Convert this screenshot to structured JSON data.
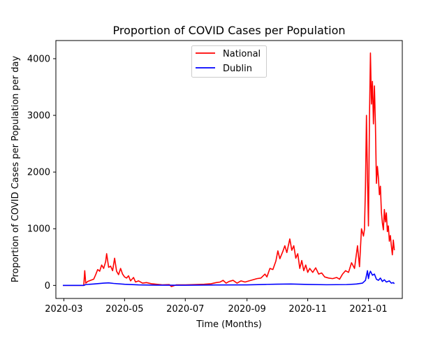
{
  "chart_data": {
    "type": "line",
    "title": "Proportion of COVID Cases per Population",
    "xlabel": "Time (Months)",
    "ylabel": "Proportion of COVID Cases per Population per day",
    "x_range": [
      "2020-02-22",
      "2021-02-04"
    ],
    "ylim": [
      -230,
      4320
    ],
    "x_ticks": [
      "2020-03-01",
      "2020-05-01",
      "2020-07-01",
      "2020-09-01",
      "2020-11-01",
      "2021-01-01"
    ],
    "x_tick_labels": [
      "2020-03",
      "2020-05",
      "2020-07",
      "2020-09",
      "2020-11",
      "2021-01"
    ],
    "y_ticks": [
      0,
      1000,
      2000,
      3000,
      4000
    ],
    "y_tick_labels": [
      "0",
      "1000",
      "2000",
      "3000",
      "4000"
    ],
    "grid": false,
    "legend_position": "top-center",
    "series": [
      {
        "name": "National",
        "color": "#ff0000",
        "points": [
          [
            "2020-02-29",
            0
          ],
          [
            "2020-03-10",
            0
          ],
          [
            "2020-03-21",
            0
          ],
          [
            "2020-03-22",
            260
          ],
          [
            "2020-03-23",
            40
          ],
          [
            "2020-03-25",
            70
          ],
          [
            "2020-03-28",
            90
          ],
          [
            "2020-03-31",
            110
          ],
          [
            "2020-04-02",
            190
          ],
          [
            "2020-04-04",
            280
          ],
          [
            "2020-04-06",
            250
          ],
          [
            "2020-04-08",
            360
          ],
          [
            "2020-04-10",
            300
          ],
          [
            "2020-04-12",
            420
          ],
          [
            "2020-04-13",
            560
          ],
          [
            "2020-04-15",
            320
          ],
          [
            "2020-04-17",
            340
          ],
          [
            "2020-04-19",
            260
          ],
          [
            "2020-04-21",
            480
          ],
          [
            "2020-04-23",
            250
          ],
          [
            "2020-04-25",
            190
          ],
          [
            "2020-04-27",
            300
          ],
          [
            "2020-04-29",
            200
          ],
          [
            "2020-05-01",
            150
          ],
          [
            "2020-05-03",
            130
          ],
          [
            "2020-05-05",
            170
          ],
          [
            "2020-05-07",
            80
          ],
          [
            "2020-05-10",
            140
          ],
          [
            "2020-05-12",
            60
          ],
          [
            "2020-05-15",
            80
          ],
          [
            "2020-05-19",
            40
          ],
          [
            "2020-05-23",
            50
          ],
          [
            "2020-05-28",
            30
          ],
          [
            "2020-06-02",
            20
          ],
          [
            "2020-06-08",
            10
          ],
          [
            "2020-06-15",
            15
          ],
          [
            "2020-06-17",
            -20
          ],
          [
            "2020-06-22",
            10
          ],
          [
            "2020-07-01",
            10
          ],
          [
            "2020-07-10",
            15
          ],
          [
            "2020-07-20",
            20
          ],
          [
            "2020-07-27",
            30
          ],
          [
            "2020-08-01",
            50
          ],
          [
            "2020-08-05",
            60
          ],
          [
            "2020-08-08",
            90
          ],
          [
            "2020-08-11",
            40
          ],
          [
            "2020-08-14",
            70
          ],
          [
            "2020-08-18",
            90
          ],
          [
            "2020-08-22",
            40
          ],
          [
            "2020-08-26",
            80
          ],
          [
            "2020-08-30",
            60
          ],
          [
            "2020-09-03",
            80
          ],
          [
            "2020-09-07",
            100
          ],
          [
            "2020-09-11",
            120
          ],
          [
            "2020-09-15",
            130
          ],
          [
            "2020-09-19",
            200
          ],
          [
            "2020-09-21",
            150
          ],
          [
            "2020-09-24",
            300
          ],
          [
            "2020-09-27",
            280
          ],
          [
            "2020-09-30",
            430
          ],
          [
            "2020-10-02",
            610
          ],
          [
            "2020-10-04",
            470
          ],
          [
            "2020-10-07",
            600
          ],
          [
            "2020-10-09",
            700
          ],
          [
            "2020-10-11",
            580
          ],
          [
            "2020-10-14",
            820
          ],
          [
            "2020-10-16",
            620
          ],
          [
            "2020-10-18",
            700
          ],
          [
            "2020-10-20",
            480
          ],
          [
            "2020-10-22",
            560
          ],
          [
            "2020-10-24",
            300
          ],
          [
            "2020-10-26",
            440
          ],
          [
            "2020-10-28",
            260
          ],
          [
            "2020-10-30",
            360
          ],
          [
            "2020-11-01",
            230
          ],
          [
            "2020-11-03",
            300
          ],
          [
            "2020-11-06",
            230
          ],
          [
            "2020-11-09",
            310
          ],
          [
            "2020-11-12",
            200
          ],
          [
            "2020-11-15",
            220
          ],
          [
            "2020-11-18",
            150
          ],
          [
            "2020-11-22",
            130
          ],
          [
            "2020-11-26",
            120
          ],
          [
            "2020-11-30",
            140
          ],
          [
            "2020-12-03",
            110
          ],
          [
            "2020-12-06",
            200
          ],
          [
            "2020-12-09",
            260
          ],
          [
            "2020-12-12",
            230
          ],
          [
            "2020-12-15",
            400
          ],
          [
            "2020-12-18",
            300
          ],
          [
            "2020-12-21",
            700
          ],
          [
            "2020-12-23",
            330
          ],
          [
            "2020-12-25",
            1000
          ],
          [
            "2020-12-27",
            870
          ],
          [
            "2020-12-28",
            990
          ],
          [
            "2020-12-29",
            1750
          ],
          [
            "2020-12-30",
            3000
          ],
          [
            "2020-12-31",
            1900
          ],
          [
            "2021-01-01",
            1050
          ],
          [
            "2021-01-02",
            2940
          ],
          [
            "2021-01-03",
            4100
          ],
          [
            "2021-01-04",
            3200
          ],
          [
            "2021-01-05",
            3600
          ],
          [
            "2021-01-06",
            2850
          ],
          [
            "2021-01-07",
            3520
          ],
          [
            "2021-01-08",
            2850
          ],
          [
            "2021-01-09",
            1800
          ],
          [
            "2021-01-10",
            2100
          ],
          [
            "2021-01-11",
            1900
          ],
          [
            "2021-01-12",
            1600
          ],
          [
            "2021-01-13",
            1750
          ],
          [
            "2021-01-14",
            1300
          ],
          [
            "2021-01-15",
            1100
          ],
          [
            "2021-01-16",
            980
          ],
          [
            "2021-01-17",
            1340
          ],
          [
            "2021-01-18",
            1120
          ],
          [
            "2021-01-19",
            1280
          ],
          [
            "2021-01-20",
            950
          ],
          [
            "2021-01-21",
            1050
          ],
          [
            "2021-01-22",
            780
          ],
          [
            "2021-01-23",
            880
          ],
          [
            "2021-01-24",
            700
          ],
          [
            "2021-01-25",
            540
          ],
          [
            "2021-01-26",
            800
          ],
          [
            "2021-01-27",
            620
          ]
        ]
      },
      {
        "name": "Dublin",
        "color": "#0000ff",
        "points": [
          [
            "2020-02-29",
            0
          ],
          [
            "2020-03-21",
            0
          ],
          [
            "2020-03-23",
            15
          ],
          [
            "2020-03-31",
            25
          ],
          [
            "2020-04-10",
            40
          ],
          [
            "2020-04-15",
            45
          ],
          [
            "2020-04-20",
            35
          ],
          [
            "2020-05-01",
            20
          ],
          [
            "2020-05-15",
            10
          ],
          [
            "2020-06-01",
            5
          ],
          [
            "2020-07-01",
            3
          ],
          [
            "2020-08-01",
            8
          ],
          [
            "2020-09-01",
            10
          ],
          [
            "2020-09-20",
            18
          ],
          [
            "2020-10-01",
            22
          ],
          [
            "2020-10-15",
            25
          ],
          [
            "2020-11-01",
            18
          ],
          [
            "2020-11-20",
            12
          ],
          [
            "2020-12-10",
            15
          ],
          [
            "2020-12-20",
            25
          ],
          [
            "2020-12-26",
            40
          ],
          [
            "2020-12-29",
            90
          ],
          [
            "2020-12-31",
            260
          ],
          [
            "2021-01-01",
            120
          ],
          [
            "2021-01-02",
            210
          ],
          [
            "2021-01-03",
            250
          ],
          [
            "2021-01-05",
            180
          ],
          [
            "2021-01-07",
            200
          ],
          [
            "2021-01-09",
            110
          ],
          [
            "2021-01-11",
            90
          ],
          [
            "2021-01-13",
            130
          ],
          [
            "2021-01-15",
            70
          ],
          [
            "2021-01-17",
            100
          ],
          [
            "2021-01-19",
            60
          ],
          [
            "2021-01-22",
            80
          ],
          [
            "2021-01-24",
            40
          ],
          [
            "2021-01-26",
            50
          ],
          [
            "2021-01-27",
            30
          ]
        ]
      }
    ]
  }
}
